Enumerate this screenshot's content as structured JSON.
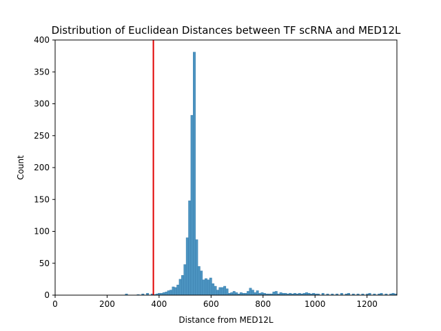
{
  "chart_data": {
    "type": "bar",
    "title": "Distribution of Euclidean Distances between TF scRNA and MED12L",
    "xlabel": "Distance from MED12L",
    "ylabel": "Count",
    "xlim": [
      0,
      1315
    ],
    "ylim": [
      0,
      400
    ],
    "xticks": [
      0,
      200,
      400,
      600,
      800,
      1000,
      1200
    ],
    "yticks": [
      0,
      50,
      100,
      150,
      200,
      250,
      300,
      350,
      400
    ],
    "grid": false,
    "bin_width": 9,
    "bar_color": "#4c94c1",
    "bar_edge_color": "#3a7fae",
    "reference_line": {
      "x": 378,
      "color": "#e00000"
    },
    "bins": [
      {
        "x": 270,
        "count": 2
      },
      {
        "x": 315,
        "count": 1
      },
      {
        "x": 333,
        "count": 2
      },
      {
        "x": 351,
        "count": 3
      },
      {
        "x": 369,
        "count": 2
      },
      {
        "x": 378,
        "count": 1
      },
      {
        "x": 387,
        "count": 2
      },
      {
        "x": 396,
        "count": 3
      },
      {
        "x": 405,
        "count": 3
      },
      {
        "x": 414,
        "count": 4
      },
      {
        "x": 423,
        "count": 5
      },
      {
        "x": 432,
        "count": 7
      },
      {
        "x": 441,
        "count": 8
      },
      {
        "x": 450,
        "count": 13
      },
      {
        "x": 459,
        "count": 12
      },
      {
        "x": 468,
        "count": 16
      },
      {
        "x": 477,
        "count": 25
      },
      {
        "x": 486,
        "count": 31
      },
      {
        "x": 495,
        "count": 48
      },
      {
        "x": 504,
        "count": 90
      },
      {
        "x": 513,
        "count": 148
      },
      {
        "x": 522,
        "count": 282
      },
      {
        "x": 531,
        "count": 381
      },
      {
        "x": 540,
        "count": 87
      },
      {
        "x": 549,
        "count": 45
      },
      {
        "x": 558,
        "count": 38
      },
      {
        "x": 567,
        "count": 24
      },
      {
        "x": 576,
        "count": 26
      },
      {
        "x": 585,
        "count": 24
      },
      {
        "x": 594,
        "count": 27
      },
      {
        "x": 603,
        "count": 18
      },
      {
        "x": 612,
        "count": 14
      },
      {
        "x": 621,
        "count": 8
      },
      {
        "x": 630,
        "count": 12
      },
      {
        "x": 639,
        "count": 12
      },
      {
        "x": 648,
        "count": 14
      },
      {
        "x": 657,
        "count": 10
      },
      {
        "x": 666,
        "count": 3
      },
      {
        "x": 675,
        "count": 4
      },
      {
        "x": 684,
        "count": 6
      },
      {
        "x": 693,
        "count": 4
      },
      {
        "x": 702,
        "count": 2
      },
      {
        "x": 711,
        "count": 4
      },
      {
        "x": 720,
        "count": 3
      },
      {
        "x": 729,
        "count": 3
      },
      {
        "x": 738,
        "count": 6
      },
      {
        "x": 747,
        "count": 11
      },
      {
        "x": 756,
        "count": 8
      },
      {
        "x": 765,
        "count": 4
      },
      {
        "x": 774,
        "count": 7
      },
      {
        "x": 783,
        "count": 3
      },
      {
        "x": 792,
        "count": 4
      },
      {
        "x": 801,
        "count": 3
      },
      {
        "x": 810,
        "count": 2
      },
      {
        "x": 819,
        "count": 2
      },
      {
        "x": 828,
        "count": 2
      },
      {
        "x": 837,
        "count": 5
      },
      {
        "x": 846,
        "count": 6
      },
      {
        "x": 855,
        "count": 2
      },
      {
        "x": 864,
        "count": 4
      },
      {
        "x": 873,
        "count": 3
      },
      {
        "x": 882,
        "count": 3
      },
      {
        "x": 891,
        "count": 2
      },
      {
        "x": 900,
        "count": 3
      },
      {
        "x": 909,
        "count": 2
      },
      {
        "x": 918,
        "count": 3
      },
      {
        "x": 927,
        "count": 2
      },
      {
        "x": 936,
        "count": 3
      },
      {
        "x": 945,
        "count": 2
      },
      {
        "x": 954,
        "count": 3
      },
      {
        "x": 963,
        "count": 4
      },
      {
        "x": 972,
        "count": 3
      },
      {
        "x": 981,
        "count": 2
      },
      {
        "x": 990,
        "count": 3
      },
      {
        "x": 999,
        "count": 2
      },
      {
        "x": 1008,
        "count": 2
      },
      {
        "x": 1026,
        "count": 3
      },
      {
        "x": 1044,
        "count": 2
      },
      {
        "x": 1062,
        "count": 2
      },
      {
        "x": 1080,
        "count": 2
      },
      {
        "x": 1098,
        "count": 3
      },
      {
        "x": 1116,
        "count": 2
      },
      {
        "x": 1125,
        "count": 3
      },
      {
        "x": 1143,
        "count": 2
      },
      {
        "x": 1161,
        "count": 2
      },
      {
        "x": 1179,
        "count": 2
      },
      {
        "x": 1197,
        "count": 2
      },
      {
        "x": 1206,
        "count": 3
      },
      {
        "x": 1224,
        "count": 2
      },
      {
        "x": 1242,
        "count": 2
      },
      {
        "x": 1251,
        "count": 3
      },
      {
        "x": 1269,
        "count": 2
      },
      {
        "x": 1287,
        "count": 2
      },
      {
        "x": 1296,
        "count": 3
      },
      {
        "x": 1305,
        "count": 2
      }
    ]
  }
}
